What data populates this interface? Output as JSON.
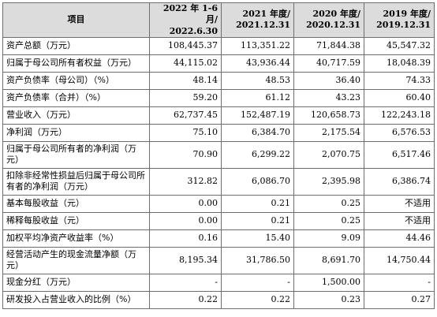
{
  "header": {
    "item": "项目",
    "periods": [
      {
        "line1": "2022 年 1-6 月/",
        "line2": "2022.6.30"
      },
      {
        "line1": "2021 年度/",
        "line2": "2021.12.31"
      },
      {
        "line1": "2020 年度/",
        "line2": "2020.12.31"
      },
      {
        "line1": "2019 年度/",
        "line2": "2019.12.31"
      }
    ]
  },
  "rows": [
    {
      "label": "资产总额（万元）",
      "values": [
        "108,445.37",
        "113,351.22",
        "71,844.38",
        "45,547.32"
      ]
    },
    {
      "label": "归属于母公司所有者权益（万元）",
      "values": [
        "44,115.02",
        "43,936.44",
        "40,717.59",
        "18,048.39"
      ]
    },
    {
      "label": "资产负债率（母公司）（%）",
      "values": [
        "48.14",
        "48.53",
        "36.40",
        "74.33"
      ]
    },
    {
      "label": "资产负债率（合并）（%）",
      "values": [
        "59.20",
        "61.12",
        "43.23",
        "60.40"
      ]
    },
    {
      "label": "营业收入（万元）",
      "values": [
        "62,737.45",
        "152,487.19",
        "120,658.73",
        "122,243.18"
      ]
    },
    {
      "label": "净利润（万元）",
      "values": [
        "75.10",
        "6,384.70",
        "2,175.54",
        "6,576.53"
      ]
    },
    {
      "label": "归属于母公司所有者的净利润（万元）",
      "values": [
        "70.90",
        "6,299.22",
        "2,070.75",
        "6,517.46"
      ]
    },
    {
      "label": "扣除非经常性损益后归属于母公司所有者的净利润（万元）",
      "values": [
        "312.82",
        "6,086.70",
        "2,395.98",
        "6,386.74"
      ]
    },
    {
      "label": "基本每股收益（元）",
      "values": [
        "0.00",
        "0.21",
        "0.25",
        "不适用"
      ]
    },
    {
      "label": "稀释每股收益（元）",
      "values": [
        "0.00",
        "0.21",
        "0.25",
        "不适用"
      ]
    },
    {
      "label": "加权平均净资产收益率（%）",
      "values": [
        "0.16",
        "15.40",
        "9.09",
        "44.46"
      ]
    },
    {
      "label": "经营活动产生的现金流量净额（万元）",
      "values": [
        "8,195.34",
        "31,786.50",
        "8,691.70",
        "14,750.44"
      ]
    },
    {
      "label": "现金分红（万元）",
      "values": [
        "-",
        "-",
        "1,500.00",
        "-"
      ]
    },
    {
      "label": "研发投入占营业收入的比例（%）",
      "values": [
        "0.22",
        "0.22",
        "0.23",
        "0.27"
      ]
    }
  ]
}
